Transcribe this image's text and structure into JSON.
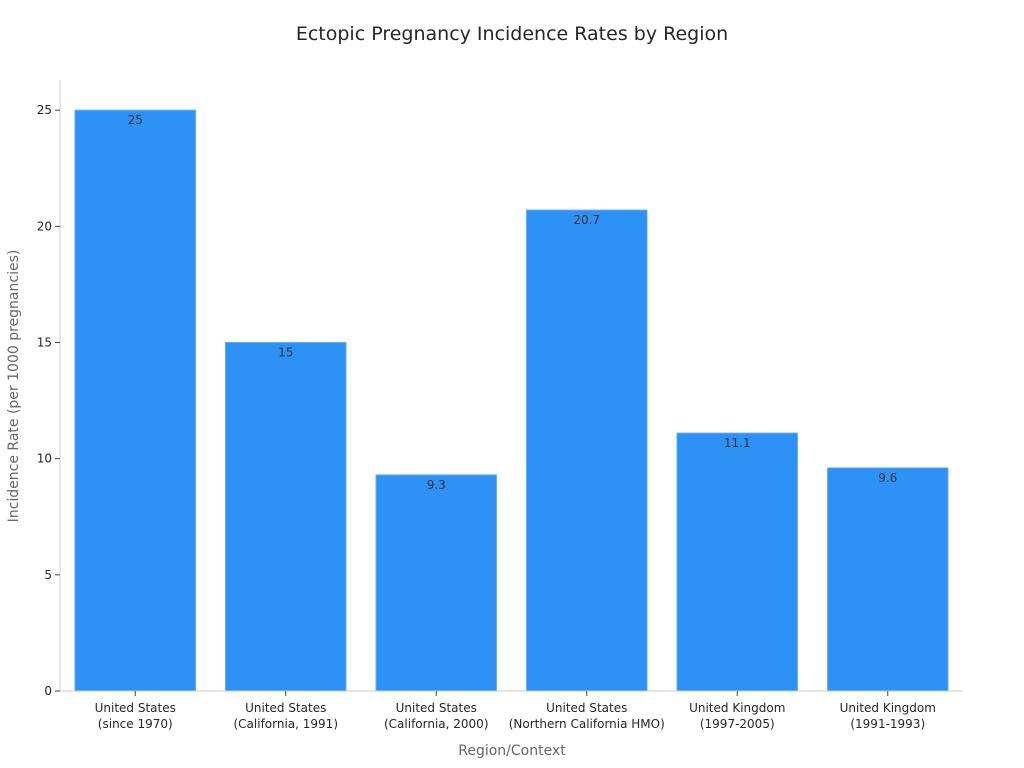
{
  "chart_data": {
    "type": "bar",
    "title": "Ectopic Pregnancy Incidence Rates by Region",
    "xlabel": "Region/Context",
    "ylabel": "Incidence Rate (per 1000 pregnancies)",
    "categories": [
      [
        "United States",
        "(since 1970)"
      ],
      [
        "United States",
        "(California, 1991)"
      ],
      [
        "United States",
        "(California, 2000)"
      ],
      [
        "United States",
        "(Northern California HMO)"
      ],
      [
        "United Kingdom",
        "(1997-2005)"
      ],
      [
        "United Kingdom",
        "(1991-1993)"
      ]
    ],
    "values": [
      25,
      15,
      9.3,
      20.7,
      11.1,
      9.6
    ],
    "data_labels": [
      "25",
      "15",
      "9.3",
      "20.7",
      "11.1",
      "9.6"
    ],
    "ylim": [
      0,
      26.3
    ],
    "yticks": [
      0,
      5,
      10,
      15,
      20,
      25
    ],
    "grid": false,
    "bar_color": "#2e91f5"
  }
}
